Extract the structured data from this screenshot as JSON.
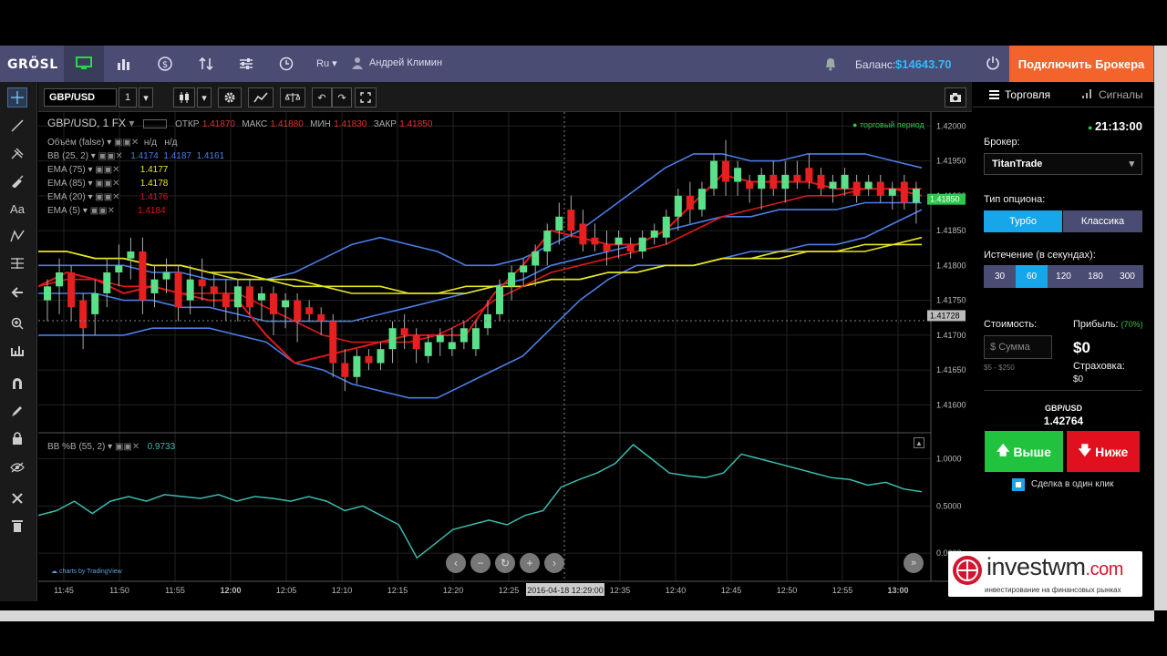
{
  "header": {
    "logo": "GRÖSL",
    "lang": "Ru ▾",
    "user": "Андрей Климин",
    "balance_label": "Баланс:",
    "balance_value": "$14643.70",
    "connect_label": "Подключить Брокера"
  },
  "toolbar": {
    "symbol": "GBP/USD",
    "interval": "1"
  },
  "legend": {
    "title": "GBP/USD, 1  FX",
    "open_label": "ОТКР",
    "open": "1.41870",
    "high_label": "МАКС",
    "high": "1.41880",
    "low_label": "МИН",
    "low": "1.41830",
    "close_label": "ЗАКР",
    "close": "1.41850",
    "period_label": "торговый период",
    "ind": [
      {
        "name": "Объём (false)",
        "v1": "н/д",
        "v2": "н/д"
      },
      {
        "name": "BB (25, 2)",
        "v1": "1.4174",
        "v2": "1.4187",
        "v3": "1.4161"
      },
      {
        "name": "EMA (75)",
        "v1": "1.4177"
      },
      {
        "name": "EMA (85)",
        "v1": "1.4178"
      },
      {
        "name": "EMA (20)",
        "v1": "1.4176"
      },
      {
        "name": "EMA (5)",
        "v1": "1.4184"
      }
    ],
    "osc": {
      "name": "BB %B (55, 2)",
      "v1": "0.9733"
    }
  },
  "axis": {
    "price_ticks": [
      "1.42000",
      "1.41950",
      "1.41900",
      "1.41850",
      "1.41800",
      "1.41750",
      "1.41700",
      "1.41650",
      "1.41600"
    ],
    "price_marker": "1.41728",
    "last_price": "1.41850",
    "osc_ticks": [
      "1.0000",
      "0.5000",
      "0.0000"
    ],
    "time_ticks": [
      "11:45",
      "11:50",
      "11:55",
      "12:00",
      "12:05",
      "12:10",
      "12:15",
      "12:20",
      "12:25",
      "12:35",
      "12:40",
      "12:45",
      "12:50",
      "12:55",
      "13:00"
    ],
    "cursor_time": "2016-04-18 12:29:00",
    "credit": "charts by TradingView"
  },
  "side": {
    "tab_trade": "Торговля",
    "tab_signals": "Сигналы",
    "clock": "21:13:00",
    "broker_label": "Брокер:",
    "broker_value": "TitanTrade",
    "option_label": "Тип опциона:",
    "turbo": "Турбо",
    "classic": "Классика",
    "expiry_label": "Истечение (в секундах):",
    "expiry": [
      "30",
      "60",
      "120",
      "180",
      "300"
    ],
    "cost_label": "Стоимость:",
    "cost_placeholder": "Сумма",
    "cost_range": "$5 - $250",
    "profit_label": "Прибыль:",
    "profit_pct": "(70%)",
    "profit_value": "$0",
    "insurance_label": "Страховка:",
    "insurance_value": "$0",
    "pair": "GBP/USD",
    "pair_price": "1.42764",
    "buy": "Выше",
    "sell": "Ниже",
    "oneclick": "Сделка в один клик"
  },
  "watermark": {
    "brand": "investwm",
    "tld": ".com",
    "tagline": "инвестирование на финансовых рынках"
  },
  "chart_data": {
    "type": "candlestick",
    "ylim": [
      1.4156,
      1.4202
    ],
    "candles_ohlc": [
      [
        1.4175,
        1.4178,
        1.4172,
        1.4177
      ],
      [
        1.4177,
        1.4181,
        1.4173,
        1.4179
      ],
      [
        1.4179,
        1.418,
        1.4172,
        1.4174
      ],
      [
        1.4175,
        1.4176,
        1.4168,
        1.4171
      ],
      [
        1.4173,
        1.4178,
        1.417,
        1.4176
      ],
      [
        1.4176,
        1.4181,
        1.4174,
        1.4179
      ],
      [
        1.4179,
        1.4183,
        1.4177,
        1.418
      ],
      [
        1.4181,
        1.4184,
        1.4178,
        1.4182
      ],
      [
        1.4182,
        1.4184,
        1.4173,
        1.4175
      ],
      [
        1.4176,
        1.418,
        1.4174,
        1.4178
      ],
      [
        1.4178,
        1.4181,
        1.4176,
        1.4179
      ],
      [
        1.4179,
        1.418,
        1.4172,
        1.4174
      ],
      [
        1.4175,
        1.418,
        1.4173,
        1.4178
      ],
      [
        1.4178,
        1.4181,
        1.4175,
        1.4177
      ],
      [
        1.4177,
        1.4179,
        1.4174,
        1.4176
      ],
      [
        1.4176,
        1.4178,
        1.4172,
        1.4174
      ],
      [
        1.4174,
        1.4178,
        1.4172,
        1.4177
      ],
      [
        1.4177,
        1.4178,
        1.4173,
        1.4174
      ],
      [
        1.4175,
        1.4177,
        1.4172,
        1.4176
      ],
      [
        1.4176,
        1.4177,
        1.417,
        1.4173
      ],
      [
        1.4174,
        1.4176,
        1.4171,
        1.4175
      ],
      [
        1.4175,
        1.4176,
        1.4169,
        1.4172
      ],
      [
        1.4174,
        1.4175,
        1.4172,
        1.4173
      ],
      [
        1.4173,
        1.4174,
        1.417,
        1.4172
      ],
      [
        1.4172,
        1.4173,
        1.4164,
        1.4166
      ],
      [
        1.4166,
        1.4168,
        1.4162,
        1.4164
      ],
      [
        1.4164,
        1.4168,
        1.4163,
        1.4167
      ],
      [
        1.4167,
        1.4168,
        1.4165,
        1.4166
      ],
      [
        1.4166,
        1.4169,
        1.4165,
        1.4168
      ],
      [
        1.4168,
        1.4172,
        1.4166,
        1.4171
      ],
      [
        1.4171,
        1.4173,
        1.4168,
        1.417
      ],
      [
        1.417,
        1.4171,
        1.4166,
        1.4168
      ],
      [
        1.4167,
        1.417,
        1.4166,
        1.4169
      ],
      [
        1.4169,
        1.4171,
        1.4167,
        1.417
      ],
      [
        1.4168,
        1.4171,
        1.4167,
        1.4169
      ],
      [
        1.4169,
        1.4172,
        1.4168,
        1.4171
      ],
      [
        1.4168,
        1.4172,
        1.4167,
        1.4171
      ],
      [
        1.4171,
        1.4175,
        1.417,
        1.4173
      ],
      [
        1.4173,
        1.4178,
        1.4172,
        1.4177
      ],
      [
        1.4177,
        1.418,
        1.4175,
        1.4179
      ],
      [
        1.4179,
        1.4181,
        1.4177,
        1.418
      ],
      [
        1.418,
        1.4183,
        1.4177,
        1.4182
      ],
      [
        1.4182,
        1.4186,
        1.418,
        1.4185
      ],
      [
        1.4185,
        1.4189,
        1.4183,
        1.4187
      ],
      [
        1.4188,
        1.419,
        1.4184,
        1.4185
      ],
      [
        1.4186,
        1.4188,
        1.4182,
        1.4183
      ],
      [
        1.4184,
        1.4186,
        1.4182,
        1.4183
      ],
      [
        1.4183,
        1.4185,
        1.418,
        1.4182
      ],
      [
        1.4183,
        1.4185,
        1.4181,
        1.4184
      ],
      [
        1.4183,
        1.4184,
        1.4181,
        1.4182
      ],
      [
        1.4182,
        1.4185,
        1.4181,
        1.4184
      ],
      [
        1.4184,
        1.4186,
        1.4183,
        1.4185
      ],
      [
        1.4184,
        1.4188,
        1.4183,
        1.4187
      ],
      [
        1.4187,
        1.4191,
        1.4185,
        1.419
      ],
      [
        1.419,
        1.4192,
        1.4186,
        1.4188
      ],
      [
        1.4188,
        1.4192,
        1.4187,
        1.4191
      ],
      [
        1.4191,
        1.4196,
        1.419,
        1.4195
      ],
      [
        1.4195,
        1.4198,
        1.419,
        1.4192
      ],
      [
        1.4192,
        1.4195,
        1.419,
        1.4194
      ],
      [
        1.4192,
        1.4193,
        1.4189,
        1.4191
      ],
      [
        1.4191,
        1.4194,
        1.4188,
        1.4193
      ],
      [
        1.4193,
        1.4195,
        1.419,
        1.4191
      ],
      [
        1.4191,
        1.4195,
        1.4189,
        1.4193
      ],
      [
        1.4193,
        1.4195,
        1.4191,
        1.4192
      ],
      [
        1.4194,
        1.4196,
        1.4191,
        1.4192
      ],
      [
        1.4193,
        1.4194,
        1.419,
        1.4191
      ],
      [
        1.4191,
        1.4193,
        1.4189,
        1.4192
      ],
      [
        1.4191,
        1.4194,
        1.419,
        1.4193
      ],
      [
        1.4192,
        1.4193,
        1.4189,
        1.419
      ],
      [
        1.4191,
        1.4193,
        1.419,
        1.4192
      ],
      [
        1.4192,
        1.4193,
        1.4189,
        1.419
      ],
      [
        1.419,
        1.4192,
        1.4188,
        1.4191
      ],
      [
        1.4192,
        1.4193,
        1.4188,
        1.4189
      ],
      [
        1.4189,
        1.4192,
        1.4186,
        1.4191
      ]
    ],
    "series": [
      {
        "name": "BB (25, 2) upper",
        "color": "#4a7ee8",
        "values": [
          1.418,
          1.418,
          1.418,
          1.418,
          1.4179,
          1.4179,
          1.4178,
          1.4178,
          1.4178,
          1.4179,
          1.4181,
          1.4183,
          1.4184,
          1.4183,
          1.4182,
          1.418,
          1.418,
          1.4181,
          1.4183,
          1.4185,
          1.4188,
          1.4191,
          1.4194,
          1.4196,
          1.4196,
          1.4195,
          1.4195,
          1.4196,
          1.4196,
          1.4196,
          1.4195,
          1.4194
        ]
      },
      {
        "name": "BB (25, 2) lower",
        "color": "#4a7ee8",
        "values": [
          1.417,
          1.417,
          1.417,
          1.417,
          1.4171,
          1.4171,
          1.4171,
          1.417,
          1.4169,
          1.4166,
          1.4165,
          1.4163,
          1.4162,
          1.4161,
          1.4161,
          1.4163,
          1.4165,
          1.4167,
          1.4171,
          1.4175,
          1.4178,
          1.418,
          1.418,
          1.418,
          1.4181,
          1.4182,
          1.4182,
          1.4183,
          1.4183,
          1.4184,
          1.4186,
          1.4188
        ]
      },
      {
        "name": "BB (25, 2) basis",
        "color": "#4a7ee8",
        "values": [
          1.4176,
          1.4176,
          1.4176,
          1.4175,
          1.4175,
          1.4174,
          1.4174,
          1.4173,
          1.4172,
          1.4172,
          1.4172,
          1.4172,
          1.4173,
          1.4174,
          1.4175,
          1.4176,
          1.4177,
          1.4178,
          1.418,
          1.4181,
          1.4182,
          1.4183,
          1.4185,
          1.4186,
          1.4187,
          1.4187,
          1.4188,
          1.4188,
          1.4188,
          1.4189,
          1.4189,
          1.4189
        ]
      },
      {
        "name": "EMA (75)",
        "color": "#e8e820",
        "values": [
          1.4182,
          1.4182,
          1.4181,
          1.4181,
          1.418,
          1.418,
          1.4179,
          1.4178,
          1.4178,
          1.4177,
          1.4177,
          1.4176,
          1.4176,
          1.4176,
          1.4176,
          1.4176,
          1.4177,
          1.4177,
          1.4178,
          1.4178,
          1.4179,
          1.4179,
          1.418,
          1.418,
          1.4181,
          1.4181,
          1.4182,
          1.4182,
          1.4182,
          1.4183,
          1.4183,
          1.4184
        ]
      },
      {
        "name": "EMA (85)",
        "color": "#e8e820",
        "values": [
          1.4182,
          1.4182,
          1.4181,
          1.4181,
          1.418,
          1.418,
          1.4179,
          1.4179,
          1.4178,
          1.4178,
          1.4177,
          1.4177,
          1.4177,
          1.4176,
          1.4176,
          1.4177,
          1.4177,
          1.4177,
          1.4178,
          1.4178,
          1.4179,
          1.4179,
          1.418,
          1.418,
          1.4181,
          1.4181,
          1.4181,
          1.4182,
          1.4182,
          1.4182,
          1.4183,
          1.4183
        ]
      },
      {
        "name": "EMA (20)",
        "color": "#e01818",
        "values": [
          1.4177,
          1.4178,
          1.4178,
          1.4177,
          1.4177,
          1.4176,
          1.4176,
          1.4176,
          1.4174,
          1.4172,
          1.417,
          1.4169,
          1.4169,
          1.4169,
          1.417,
          1.4172,
          1.4175,
          1.4177,
          1.4179,
          1.418,
          1.4181,
          1.4182,
          1.4183,
          1.4185,
          1.4187,
          1.4188,
          1.4189,
          1.419,
          1.419,
          1.4191,
          1.4191,
          1.4191
        ]
      },
      {
        "name": "EMA (5)",
        "color": "#e01818",
        "values": [
          1.4177,
          1.4179,
          1.4178,
          1.4176,
          1.4177,
          1.4176,
          1.4175,
          1.4175,
          1.417,
          1.4166,
          1.4167,
          1.4168,
          1.4169,
          1.417,
          1.417,
          1.417,
          1.4176,
          1.418,
          1.4185,
          1.4184,
          1.4183,
          1.4183,
          1.4185,
          1.4189,
          1.4193,
          1.4192,
          1.4192,
          1.4192,
          1.4191,
          1.4191,
          1.4191,
          1.419
        ]
      }
    ],
    "oscillator": {
      "name": "BB %B (55, 2)",
      "color": "#3bbcb0",
      "ylim": [
        -0.25,
        1.15
      ],
      "values": [
        0.4,
        0.45,
        0.55,
        0.42,
        0.55,
        0.6,
        0.55,
        0.62,
        0.6,
        0.58,
        0.62,
        0.55,
        0.6,
        0.58,
        0.55,
        0.6,
        0.55,
        0.45,
        0.5,
        0.4,
        0.3,
        -0.05,
        0.1,
        0.25,
        0.3,
        0.35,
        0.3,
        0.4,
        0.45,
        0.7,
        0.78,
        0.85,
        0.95,
        1.15,
        1.0,
        0.85,
        0.82,
        0.8,
        0.85,
        1.05,
        1.0,
        0.95,
        0.9,
        0.85,
        0.8,
        0.78,
        0.72,
        0.75,
        0.68,
        0.65
      ]
    }
  }
}
